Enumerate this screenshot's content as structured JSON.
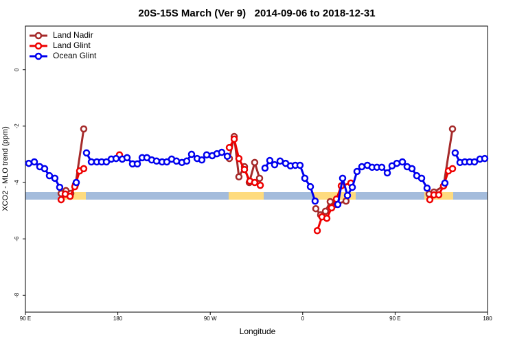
{
  "chart_data": {
    "type": "line",
    "title": "20S-15S March (Ver 9)   2014-09-06 to 2018-12-31",
    "xlabel": "Longitude",
    "ylabel": "XCO2 - MLO trend (ppm)",
    "xlim": [
      90,
      540
    ],
    "ylim": [
      -8.6,
      1.55
    ],
    "xticks": [
      {
        "value": 90,
        "label": "90 E"
      },
      180,
      {
        "value": 270,
        "label": "90 W"
      },
      {
        "value": 360,
        "label": "0"
      },
      {
        "value": 450,
        "label": "90 E"
      },
      {
        "value": 540,
        "label": "180"
      }
    ],
    "yticks": [
      0,
      -2,
      -4,
      -6,
      -8
    ],
    "legend": "top-left",
    "series": [
      {
        "name": "Land Nadir",
        "color": "#a52a2a",
        "x": [
          124.8,
          129.5,
          134.2,
          138.8,
          146.8,
          null,
          288.6,
          293.3,
          297.9,
          303.3,
          308.0,
          313.3,
          318.0,
          null,
          372.8,
          377.5,
          382.2,
          386.8,
          391.5,
          402.2,
          null,
          483.1,
          487.8,
          497.2,
          505.9
        ],
        "values": [
          -4.39,
          -4.29,
          -4.39,
          -4.07,
          -2.1,
          null,
          -3.15,
          -2.37,
          -3.8,
          -3.44,
          -4.0,
          -3.29,
          -3.85,
          null,
          -4.93,
          -5.15,
          -5.02,
          -4.68,
          -4.78,
          -4.66,
          null,
          -4.41,
          -4.34,
          -4.12,
          -2.1
        ]
      },
      {
        "name": "Land Glint",
        "color": "#ee0000",
        "x": [
          124.8,
          128.8,
          133.5,
          138.1,
          142.8,
          146.8,
          null,
          181.6,
          null,
          288.6,
          293.3,
          297.9,
          303.3,
          308.6,
          313.3,
          318.7,
          null,
          374.2,
          378.8,
          383.5,
          388.2,
          392.9,
          397.6,
          406.9,
          null,
          483.8,
          487.8,
          492.5,
          497.2,
          501.9,
          505.9
        ],
        "values": [
          -4.61,
          -4.41,
          -4.49,
          -4.15,
          -3.59,
          -3.51,
          null,
          -3.02,
          null,
          -2.76,
          -2.46,
          -3.15,
          -3.54,
          -3.95,
          -4.0,
          -4.1,
          null,
          -5.71,
          -5.22,
          -5.27,
          -4.9,
          -4.59,
          -4.12,
          -4.02,
          null,
          -4.61,
          -4.44,
          -4.44,
          -4.12,
          -3.59,
          -3.51
        ]
      },
      {
        "name": "Ocean Glint",
        "color": "#0000ee",
        "x": [
          93.3,
          98.7,
          104.0,
          108.7,
          113.4,
          118.7,
          123.4,
          null,
          139.5,
          null,
          149.5,
          154.2,
          159.5,
          164.2,
          168.9,
          173.6,
          178.3,
          184.3,
          189.0,
          194.3,
          199.0,
          203.7,
          208.3,
          213.0,
          217.7,
          223.1,
          227.7,
          232.4,
          237.1,
          242.4,
          247.1,
          251.8,
          257.2,
          261.8,
          266.5,
          271.9,
          276.5,
          281.2,
          286.6,
          null,
          323.3,
          328.0,
          332.7,
          338.0,
          343.4,
          348.1,
          352.8,
          357.4,
          362.1,
          367.5,
          372.1,
          null,
          394.2,
          398.9,
          403.6,
          408.3,
          412.9,
          417.6,
          423.0,
          427.6,
          432.3,
          437.0,
          442.4,
          447.0,
          451.7,
          457.1,
          461.7,
          466.4,
          471.1,
          475.8,
          481.1,
          null,
          498.5,
          null,
          508.5,
          513.2,
          517.9,
          522.6,
          527.3,
          532.6,
          537.3
        ],
        "values": [
          -3.32,
          -3.27,
          -3.44,
          -3.51,
          -3.76,
          -3.85,
          -4.17,
          null,
          -4.0,
          null,
          -2.95,
          -3.27,
          -3.27,
          -3.27,
          -3.27,
          -3.17,
          -3.15,
          -3.17,
          -3.12,
          -3.34,
          -3.34,
          -3.12,
          -3.12,
          -3.2,
          -3.24,
          -3.27,
          -3.27,
          -3.17,
          -3.24,
          -3.29,
          -3.24,
          -3.0,
          -3.15,
          -3.2,
          -3.02,
          -3.05,
          -2.98,
          -2.93,
          -3.07,
          null,
          -3.49,
          -3.22,
          -3.37,
          -3.24,
          -3.32,
          -3.41,
          -3.39,
          -3.39,
          -3.85,
          -4.15,
          -4.66,
          null,
          -4.78,
          -3.85,
          -4.46,
          -4.17,
          -3.61,
          -3.44,
          -3.39,
          -3.46,
          -3.46,
          -3.46,
          -3.66,
          -3.41,
          -3.32,
          -3.27,
          -3.44,
          -3.51,
          -3.76,
          -3.85,
          -4.2,
          null,
          -4.02,
          null,
          -2.95,
          -3.29,
          -3.27,
          -3.27,
          -3.27,
          -3.17,
          -3.15
        ]
      }
    ]
  }
}
